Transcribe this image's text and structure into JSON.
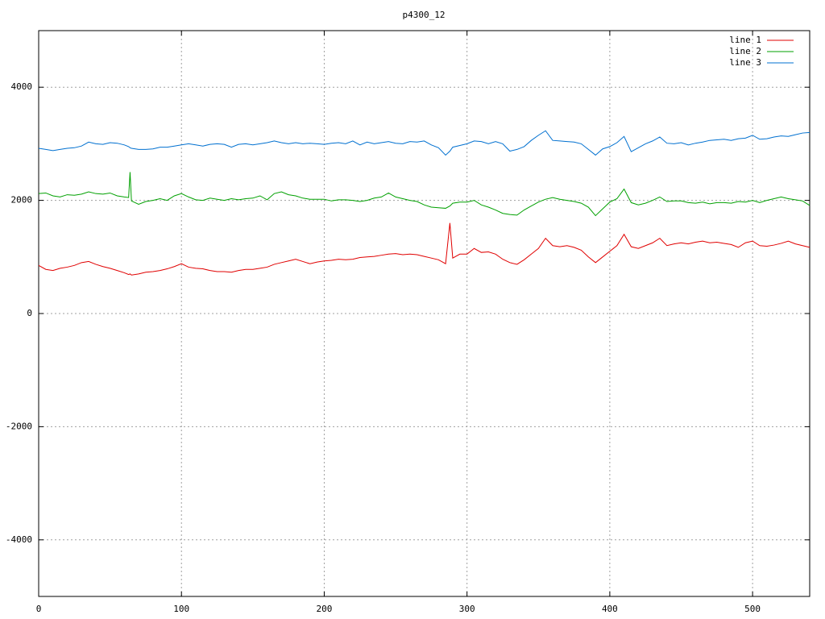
{
  "chart_data": {
    "type": "line",
    "title": "p4300_12",
    "x": [
      0,
      5,
      10,
      15,
      20,
      25,
      30,
      35,
      40,
      45,
      50,
      55,
      60,
      63,
      64,
      65,
      70,
      75,
      80,
      85,
      90,
      95,
      100,
      105,
      110,
      115,
      120,
      125,
      130,
      135,
      140,
      145,
      150,
      155,
      160,
      165,
      170,
      175,
      180,
      185,
      190,
      195,
      200,
      205,
      210,
      215,
      220,
      225,
      230,
      235,
      240,
      245,
      250,
      255,
      260,
      265,
      270,
      275,
      280,
      285,
      288,
      290,
      295,
      300,
      305,
      310,
      315,
      320,
      325,
      330,
      335,
      340,
      345,
      350,
      355,
      360,
      365,
      370,
      375,
      380,
      385,
      390,
      395,
      400,
      405,
      410,
      415,
      420,
      425,
      430,
      435,
      440,
      445,
      450,
      455,
      460,
      465,
      470,
      475,
      480,
      485,
      490,
      495,
      500,
      505,
      510,
      515,
      520,
      525,
      530,
      535,
      540
    ],
    "series": [
      {
        "name": "line 1",
        "color": "#e00000",
        "values": [
          850,
          780,
          760,
          800,
          820,
          850,
          900,
          920,
          870,
          830,
          800,
          760,
          720,
          690,
          700,
          680,
          700,
          730,
          740,
          760,
          790,
          830,
          880,
          820,
          800,
          790,
          760,
          740,
          740,
          730,
          760,
          780,
          780,
          800,
          820,
          870,
          900,
          930,
          960,
          920,
          880,
          910,
          930,
          940,
          960,
          950,
          960,
          990,
          1000,
          1010,
          1030,
          1050,
          1060,
          1040,
          1050,
          1040,
          1010,
          980,
          950,
          880,
          1600,
          980,
          1050,
          1050,
          1150,
          1080,
          1090,
          1050,
          960,
          900,
          870,
          950,
          1050,
          1150,
          1330,
          1200,
          1180,
          1200,
          1170,
          1120,
          1000,
          900,
          1000,
          1100,
          1200,
          1400,
          1180,
          1150,
          1200,
          1250,
          1330,
          1200,
          1230,
          1250,
          1230,
          1260,
          1280,
          1250,
          1260,
          1240,
          1220,
          1170,
          1250,
          1280,
          1200,
          1190,
          1210,
          1240,
          1280,
          1230,
          1200,
          1170
        ]
      },
      {
        "name": "line 2",
        "color": "#00a000",
        "values": [
          2120,
          2130,
          2080,
          2060,
          2100,
          2090,
          2110,
          2150,
          2120,
          2110,
          2130,
          2080,
          2060,
          2050,
          2500,
          1990,
          1930,
          1980,
          2000,
          2030,
          2000,
          2080,
          2120,
          2060,
          2010,
          2000,
          2040,
          2020,
          2000,
          2030,
          2010,
          2030,
          2040,
          2080,
          2010,
          2120,
          2150,
          2100,
          2080,
          2040,
          2020,
          2020,
          2020,
          1990,
          2010,
          2010,
          2000,
          1980,
          2000,
          2040,
          2060,
          2130,
          2060,
          2030,
          2000,
          1980,
          1920,
          1880,
          1870,
          1860,
          1900,
          1950,
          1970,
          1970,
          2000,
          1920,
          1880,
          1830,
          1770,
          1750,
          1740,
          1830,
          1900,
          1970,
          2020,
          2050,
          2020,
          2000,
          1980,
          1950,
          1880,
          1730,
          1850,
          1970,
          2030,
          2200,
          1960,
          1920,
          1950,
          2000,
          2060,
          1980,
          1990,
          1990,
          1960,
          1950,
          1970,
          1940,
          1960,
          1960,
          1950,
          1980,
          1970,
          2000,
          1960,
          2000,
          2030,
          2060,
          2030,
          2010,
          1990,
          1910
        ]
      },
      {
        "name": "line 3",
        "color": "#0070d0",
        "values": [
          2920,
          2900,
          2880,
          2900,
          2920,
          2930,
          2960,
          3030,
          3000,
          2990,
          3020,
          3010,
          2980,
          2950,
          2930,
          2920,
          2900,
          2900,
          2910,
          2940,
          2940,
          2960,
          2980,
          3000,
          2980,
          2960,
          2990,
          3000,
          2990,
          2940,
          2990,
          3000,
          2980,
          3000,
          3020,
          3050,
          3020,
          3000,
          3020,
          3000,
          3010,
          3000,
          2990,
          3010,
          3020,
          3000,
          3050,
          2980,
          3030,
          3000,
          3020,
          3040,
          3010,
          3000,
          3040,
          3030,
          3050,
          2980,
          2930,
          2800,
          2870,
          2940,
          2970,
          3000,
          3050,
          3040,
          3000,
          3040,
          3000,
          2870,
          2900,
          2950,
          3060,
          3150,
          3230,
          3060,
          3050,
          3040,
          3030,
          3000,
          2900,
          2800,
          2910,
          2950,
          3020,
          3130,
          2860,
          2930,
          3000,
          3050,
          3120,
          3010,
          3000,
          3020,
          2980,
          3010,
          3030,
          3060,
          3070,
          3080,
          3060,
          3090,
          3100,
          3150,
          3080,
          3090,
          3120,
          3140,
          3130,
          3160,
          3190,
          3200
        ]
      }
    ],
    "xlim": [
      0,
      540
    ],
    "xticks": [
      0,
      100,
      200,
      300,
      400,
      500
    ],
    "ylim": [
      -5000,
      5000
    ],
    "yticks": [
      -4000,
      -2000,
      0,
      2000,
      4000
    ],
    "grid": true,
    "legend": "top-right"
  }
}
